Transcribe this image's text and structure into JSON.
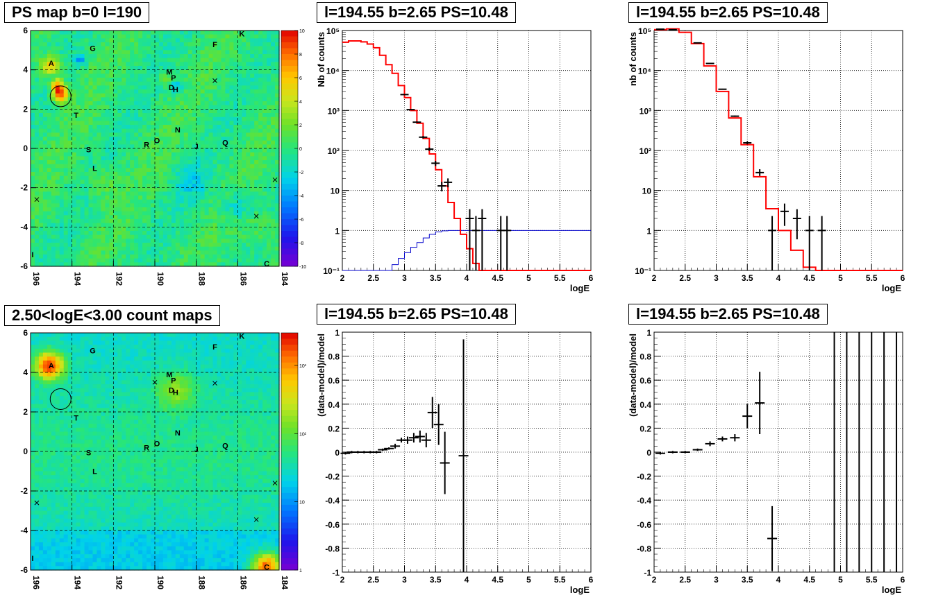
{
  "panels": {
    "tl_title": "PS map b=0 l=190",
    "bl_title": "2.50<logE<3.00 count maps",
    "tm_title": "l=194.55 b=2.65 PS=10.48",
    "tr_title": "l=194.55 b=2.65 PS=10.48",
    "bm_title": "l=194.55 b=2.65 PS=10.48",
    "br_title": "l=194.55 b=2.65 PS=10.48"
  },
  "axes_text": {
    "logE": "logE",
    "tm_ylabel": "Nb of counts",
    "tr_ylabel": "nb of counts",
    "res_ylabel": "(data-model)/model"
  },
  "colors": {
    "data": "#000000",
    "model": "#ff0000",
    "aux_model": "#0000cc",
    "grid": "#000000"
  },
  "chart_data": [
    {
      "id": "ps_map",
      "type": "heatmap",
      "title": "PS map b=0 l=190",
      "x_ticks": [
        "196",
        "194",
        "192",
        "190",
        "188",
        "186",
        "184"
      ],
      "y_ticks": [
        "6",
        "4",
        "2",
        "0",
        "-2",
        "-4",
        "-6"
      ],
      "xlim": [
        196,
        184
      ],
      "ylim": [
        -6,
        6
      ],
      "colorbar": {
        "ticks": [
          "10",
          "8",
          "6",
          "4",
          "2",
          "0",
          "-2",
          "-4",
          "-6",
          "-8",
          "-10"
        ],
        "range": [
          -10,
          10
        ]
      },
      "sources": [
        {
          "label": "A",
          "l": 195.0,
          "b": 4.35
        },
        {
          "label": "G",
          "l": 193.0,
          "b": 5.1
        },
        {
          "label": "F",
          "l": 187.1,
          "b": 5.3
        },
        {
          "label": "K",
          "l": 185.8,
          "b": 5.85
        },
        {
          "label": "M",
          "l": 189.3,
          "b": 3.9
        },
        {
          "label": "P",
          "l": 189.1,
          "b": 3.6
        },
        {
          "label": "D",
          "l": 189.2,
          "b": 3.1
        },
        {
          "label": "H",
          "l": 189.0,
          "b": 3.0
        },
        {
          "label": "T",
          "l": 193.8,
          "b": 1.7
        },
        {
          "label": "N",
          "l": 188.9,
          "b": 0.95
        },
        {
          "label": "O",
          "l": 189.9,
          "b": 0.4
        },
        {
          "label": "R",
          "l": 190.4,
          "b": 0.2
        },
        {
          "label": "J",
          "l": 188.0,
          "b": 0.1
        },
        {
          "label": "Q",
          "l": 186.6,
          "b": 0.3
        },
        {
          "label": "S",
          "l": 193.2,
          "b": -0.05
        },
        {
          "label": "L",
          "l": 192.9,
          "b": -1.0
        },
        {
          "label": "I",
          "l": 195.9,
          "b": -5.4
        },
        {
          "label": "C",
          "l": 184.6,
          "b": -5.85
        }
      ],
      "circle": {
        "l": 194.55,
        "b": 2.65
      }
    },
    {
      "id": "count_map",
      "type": "heatmap",
      "title": "2.50<logE<3.00 count maps",
      "x_ticks": [
        "196",
        "194",
        "192",
        "190",
        "188",
        "186",
        "184"
      ],
      "y_ticks": [
        "6",
        "4",
        "2",
        "0",
        "-2",
        "-4",
        "-6"
      ],
      "xlim": [
        196,
        184
      ],
      "ylim": [
        -6,
        6
      ],
      "colorbar": {
        "ticks": [
          "10³",
          "10²",
          "10",
          "1"
        ],
        "log": true,
        "range": [
          1,
          3000
        ]
      },
      "hotspots": [
        {
          "l": 195.1,
          "b": 4.35,
          "intensity": "high"
        },
        {
          "l": 184.6,
          "b": -5.85,
          "intensity": "high"
        },
        {
          "l": 189.0,
          "b": 3.1,
          "intensity": "medium"
        }
      ],
      "circle": {
        "l": 194.55,
        "b": 2.65
      }
    },
    {
      "id": "spectrum_left",
      "type": "line",
      "title": "l=194.55 b=2.65 PS=10.48",
      "xlabel": "logE",
      "ylabel": "Nb of counts",
      "xlim": [
        2,
        6
      ],
      "ylim": [
        0.1,
        100000
      ],
      "ylog": true,
      "x_ticks": [
        "2",
        "2.5",
        "3",
        "3.5",
        "4",
        "4.5",
        "5",
        "5.5",
        "6"
      ],
      "y_ticks": [
        "10⁻¹",
        "1",
        "10",
        "10²",
        "10³",
        "10⁴",
        "10⁵"
      ],
      "model_steps": [
        [
          2.0,
          51000
        ],
        [
          2.1,
          55000
        ],
        [
          2.2,
          55000
        ],
        [
          2.3,
          52000
        ],
        [
          2.4,
          46000
        ],
        [
          2.5,
          37000
        ],
        [
          2.6,
          24000
        ],
        [
          2.7,
          14000
        ],
        [
          2.8,
          8500
        ],
        [
          2.9,
          4200
        ],
        [
          3.0,
          2100
        ],
        [
          3.1,
          1000
        ],
        [
          3.2,
          480
        ],
        [
          3.3,
          200
        ],
        [
          3.4,
          82
        ],
        [
          3.5,
          33
        ],
        [
          3.6,
          13
        ],
        [
          3.7,
          5
        ],
        [
          3.8,
          2
        ],
        [
          3.9,
          0.8
        ],
        [
          4.0,
          0.35
        ],
        [
          4.1,
          0.15
        ],
        [
          4.2,
          0.1
        ],
        [
          6.0,
          0.1
        ]
      ],
      "aux_steps": [
        [
          2.0,
          0.1
        ],
        [
          2.8,
          0.14
        ],
        [
          2.9,
          0.2
        ],
        [
          3.0,
          0.28
        ],
        [
          3.1,
          0.38
        ],
        [
          3.2,
          0.5
        ],
        [
          3.3,
          0.65
        ],
        [
          3.4,
          0.8
        ],
        [
          3.5,
          0.92
        ],
        [
          3.6,
          0.98
        ],
        [
          3.7,
          1
        ],
        [
          6.0,
          1
        ]
      ],
      "points": [
        {
          "x": 3.0,
          "y": 2500,
          "elo": 2450,
          "ehi": 2550
        },
        {
          "x": 3.1,
          "y": 1050,
          "elo": 1020,
          "ehi": 1085
        },
        {
          "x": 3.2,
          "y": 510,
          "elo": 490,
          "ehi": 535
        },
        {
          "x": 3.3,
          "y": 215,
          "elo": 200,
          "ehi": 230
        },
        {
          "x": 3.4,
          "y": 108,
          "elo": 98,
          "ehi": 119
        },
        {
          "x": 3.5,
          "y": 48,
          "elo": 41,
          "ehi": 55
        },
        {
          "x": 3.6,
          "y": 13,
          "elo": 9.5,
          "ehi": 16.5
        },
        {
          "x": 3.7,
          "y": 16,
          "elo": 12,
          "ehi": 20
        },
        {
          "x": 4.05,
          "y": 2,
          "elo": 0.1,
          "ehi": 3.4
        },
        {
          "x": 4.15,
          "y": 1,
          "elo": 0.1,
          "ehi": 2.3
        },
        {
          "x": 4.25,
          "y": 2,
          "elo": 0.1,
          "ehi": 3.4
        },
        {
          "x": 4.55,
          "y": 1,
          "elo": 0.1,
          "ehi": 2.3
        },
        {
          "x": 4.65,
          "y": 1,
          "elo": 0.1,
          "ehi": 2.3
        }
      ]
    },
    {
      "id": "spectrum_right",
      "type": "line",
      "title": "l=194.55 b=2.65 PS=10.48",
      "xlabel": "logE",
      "ylabel": "nb of counts",
      "xlim": [
        2,
        6
      ],
      "ylim": [
        0.1,
        100000
      ],
      "ylog": true,
      "x_ticks": [
        "2",
        "2.5",
        "3",
        "3.5",
        "4",
        "4.5",
        "5",
        "5.5",
        "6"
      ],
      "y_ticks": [
        "10⁻¹",
        "1",
        "10",
        "10²",
        "10³",
        "10⁴",
        "10⁵"
      ],
      "model_steps": [
        [
          2.0,
          105000
        ],
        [
          2.2,
          110000
        ],
        [
          2.4,
          90000
        ],
        [
          2.6,
          47000
        ],
        [
          2.8,
          13000
        ],
        [
          3.0,
          3000
        ],
        [
          3.2,
          650
        ],
        [
          3.4,
          140
        ],
        [
          3.6,
          22
        ],
        [
          3.8,
          3.5
        ],
        [
          4.0,
          1
        ],
        [
          4.2,
          0.32
        ],
        [
          4.4,
          0.12
        ],
        [
          4.6,
          0.1
        ],
        [
          6.0,
          0.1
        ]
      ],
      "points": [
        {
          "x": 2.1,
          "y": 108000,
          "elo": 107000,
          "ehi": 109000
        },
        {
          "x": 2.3,
          "y": 105000,
          "elo": 104000,
          "ehi": 106000
        },
        {
          "x": 2.7,
          "y": 49000,
          "elo": 48500,
          "ehi": 49500
        },
        {
          "x": 2.9,
          "y": 15000,
          "elo": 14700,
          "ehi": 15300
        },
        {
          "x": 3.1,
          "y": 3400,
          "elo": 3300,
          "ehi": 3500
        },
        {
          "x": 3.3,
          "y": 720,
          "elo": 690,
          "ehi": 750
        },
        {
          "x": 3.5,
          "y": 155,
          "elo": 142,
          "ehi": 168
        },
        {
          "x": 3.7,
          "y": 28,
          "elo": 23,
          "ehi": 34
        },
        {
          "x": 3.9,
          "y": 1,
          "elo": 0.1,
          "ehi": 2.3
        },
        {
          "x": 4.1,
          "y": 3,
          "elo": 1.3,
          "ehi": 4.7
        },
        {
          "x": 4.3,
          "y": 2,
          "elo": 0.6,
          "ehi": 3.4
        },
        {
          "x": 4.5,
          "y": 1,
          "elo": 0.1,
          "ehi": 2.3
        },
        {
          "x": 4.7,
          "y": 1,
          "elo": 0.1,
          "ehi": 2.3
        }
      ]
    },
    {
      "id": "residual_left",
      "type": "scatter",
      "title": "l=194.55 b=2.65 PS=10.48",
      "xlabel": "logE",
      "ylabel": "(data-model)/model",
      "xlim": [
        2,
        6
      ],
      "ylim": [
        -1,
        1
      ],
      "x_ticks": [
        "2",
        "2.5",
        "3",
        "3.5",
        "4",
        "4.5",
        "5",
        "5.5",
        "6"
      ],
      "y_ticks": [
        "1",
        "0.8",
        "0.6",
        "0.4",
        "0.2",
        "0",
        "-0.2",
        "-0.4",
        "-0.6",
        "-0.8",
        "-1"
      ],
      "points": [
        {
          "x": 2.05,
          "y": -0.01,
          "e": 0.01
        },
        {
          "x": 2.15,
          "y": 0.0,
          "e": 0.01
        },
        {
          "x": 2.25,
          "y": 0.0,
          "e": 0.01
        },
        {
          "x": 2.35,
          "y": 0.0,
          "e": 0.01
        },
        {
          "x": 2.45,
          "y": 0.0,
          "e": 0.01
        },
        {
          "x": 2.55,
          "y": 0.0,
          "e": 0.01
        },
        {
          "x": 2.65,
          "y": 0.02,
          "e": 0.01
        },
        {
          "x": 2.75,
          "y": 0.03,
          "e": 0.01
        },
        {
          "x": 2.85,
          "y": 0.05,
          "e": 0.02
        },
        {
          "x": 2.95,
          "y": 0.1,
          "e": 0.02
        },
        {
          "x": 3.05,
          "y": 0.1,
          "e": 0.03
        },
        {
          "x": 3.15,
          "y": 0.12,
          "e": 0.04
        },
        {
          "x": 3.25,
          "y": 0.13,
          "e": 0.05
        },
        {
          "x": 3.35,
          "y": 0.1,
          "e": 0.06
        },
        {
          "x": 3.45,
          "y": 0.33,
          "e": 0.13
        },
        {
          "x": 3.55,
          "y": 0.23,
          "e": 0.17
        },
        {
          "x": 3.65,
          "y": -0.09,
          "e": 0.26
        },
        {
          "x": 3.95,
          "y": -0.03,
          "e": 0.97
        }
      ]
    },
    {
      "id": "residual_right",
      "type": "scatter",
      "title": "l=194.55 b=2.65 PS=10.48",
      "xlabel": "logE",
      "ylabel": "(data-model)/model",
      "xlim": [
        2,
        6
      ],
      "ylim": [
        -1,
        1
      ],
      "x_ticks": [
        "2",
        "2.5",
        "3",
        "3.5",
        "4",
        "4.5",
        "5",
        "5.5",
        "6"
      ],
      "y_ticks": [
        "1",
        "0.8",
        "0.6",
        "0.4",
        "0.2",
        "0",
        "-0.2",
        "-0.4",
        "-0.6",
        "-0.8",
        "-1"
      ],
      "points": [
        {
          "x": 2.1,
          "y": -0.01,
          "e": 0.01
        },
        {
          "x": 2.3,
          "y": 0.0,
          "e": 0.01
        },
        {
          "x": 2.5,
          "y": 0.0,
          "e": 0.01
        },
        {
          "x": 2.7,
          "y": 0.02,
          "e": 0.01
        },
        {
          "x": 2.9,
          "y": 0.07,
          "e": 0.02
        },
        {
          "x": 3.1,
          "y": 0.11,
          "e": 0.02
        },
        {
          "x": 3.3,
          "y": 0.12,
          "e": 0.03
        },
        {
          "x": 3.5,
          "y": 0.3,
          "e": 0.1
        },
        {
          "x": 3.7,
          "y": 0.41,
          "e": 0.26
        },
        {
          "x": 3.9,
          "y": -0.72,
          "e": 0.27
        },
        {
          "x": 4.9,
          "y": 0,
          "e": 1.1
        },
        {
          "x": 5.1,
          "y": 0,
          "e": 1.1
        },
        {
          "x": 5.3,
          "y": 0,
          "e": 1.1
        },
        {
          "x": 5.5,
          "y": 0,
          "e": 1.1
        },
        {
          "x": 5.7,
          "y": 0,
          "e": 1.1
        },
        {
          "x": 5.9,
          "y": 0,
          "e": 1.1
        }
      ]
    }
  ]
}
